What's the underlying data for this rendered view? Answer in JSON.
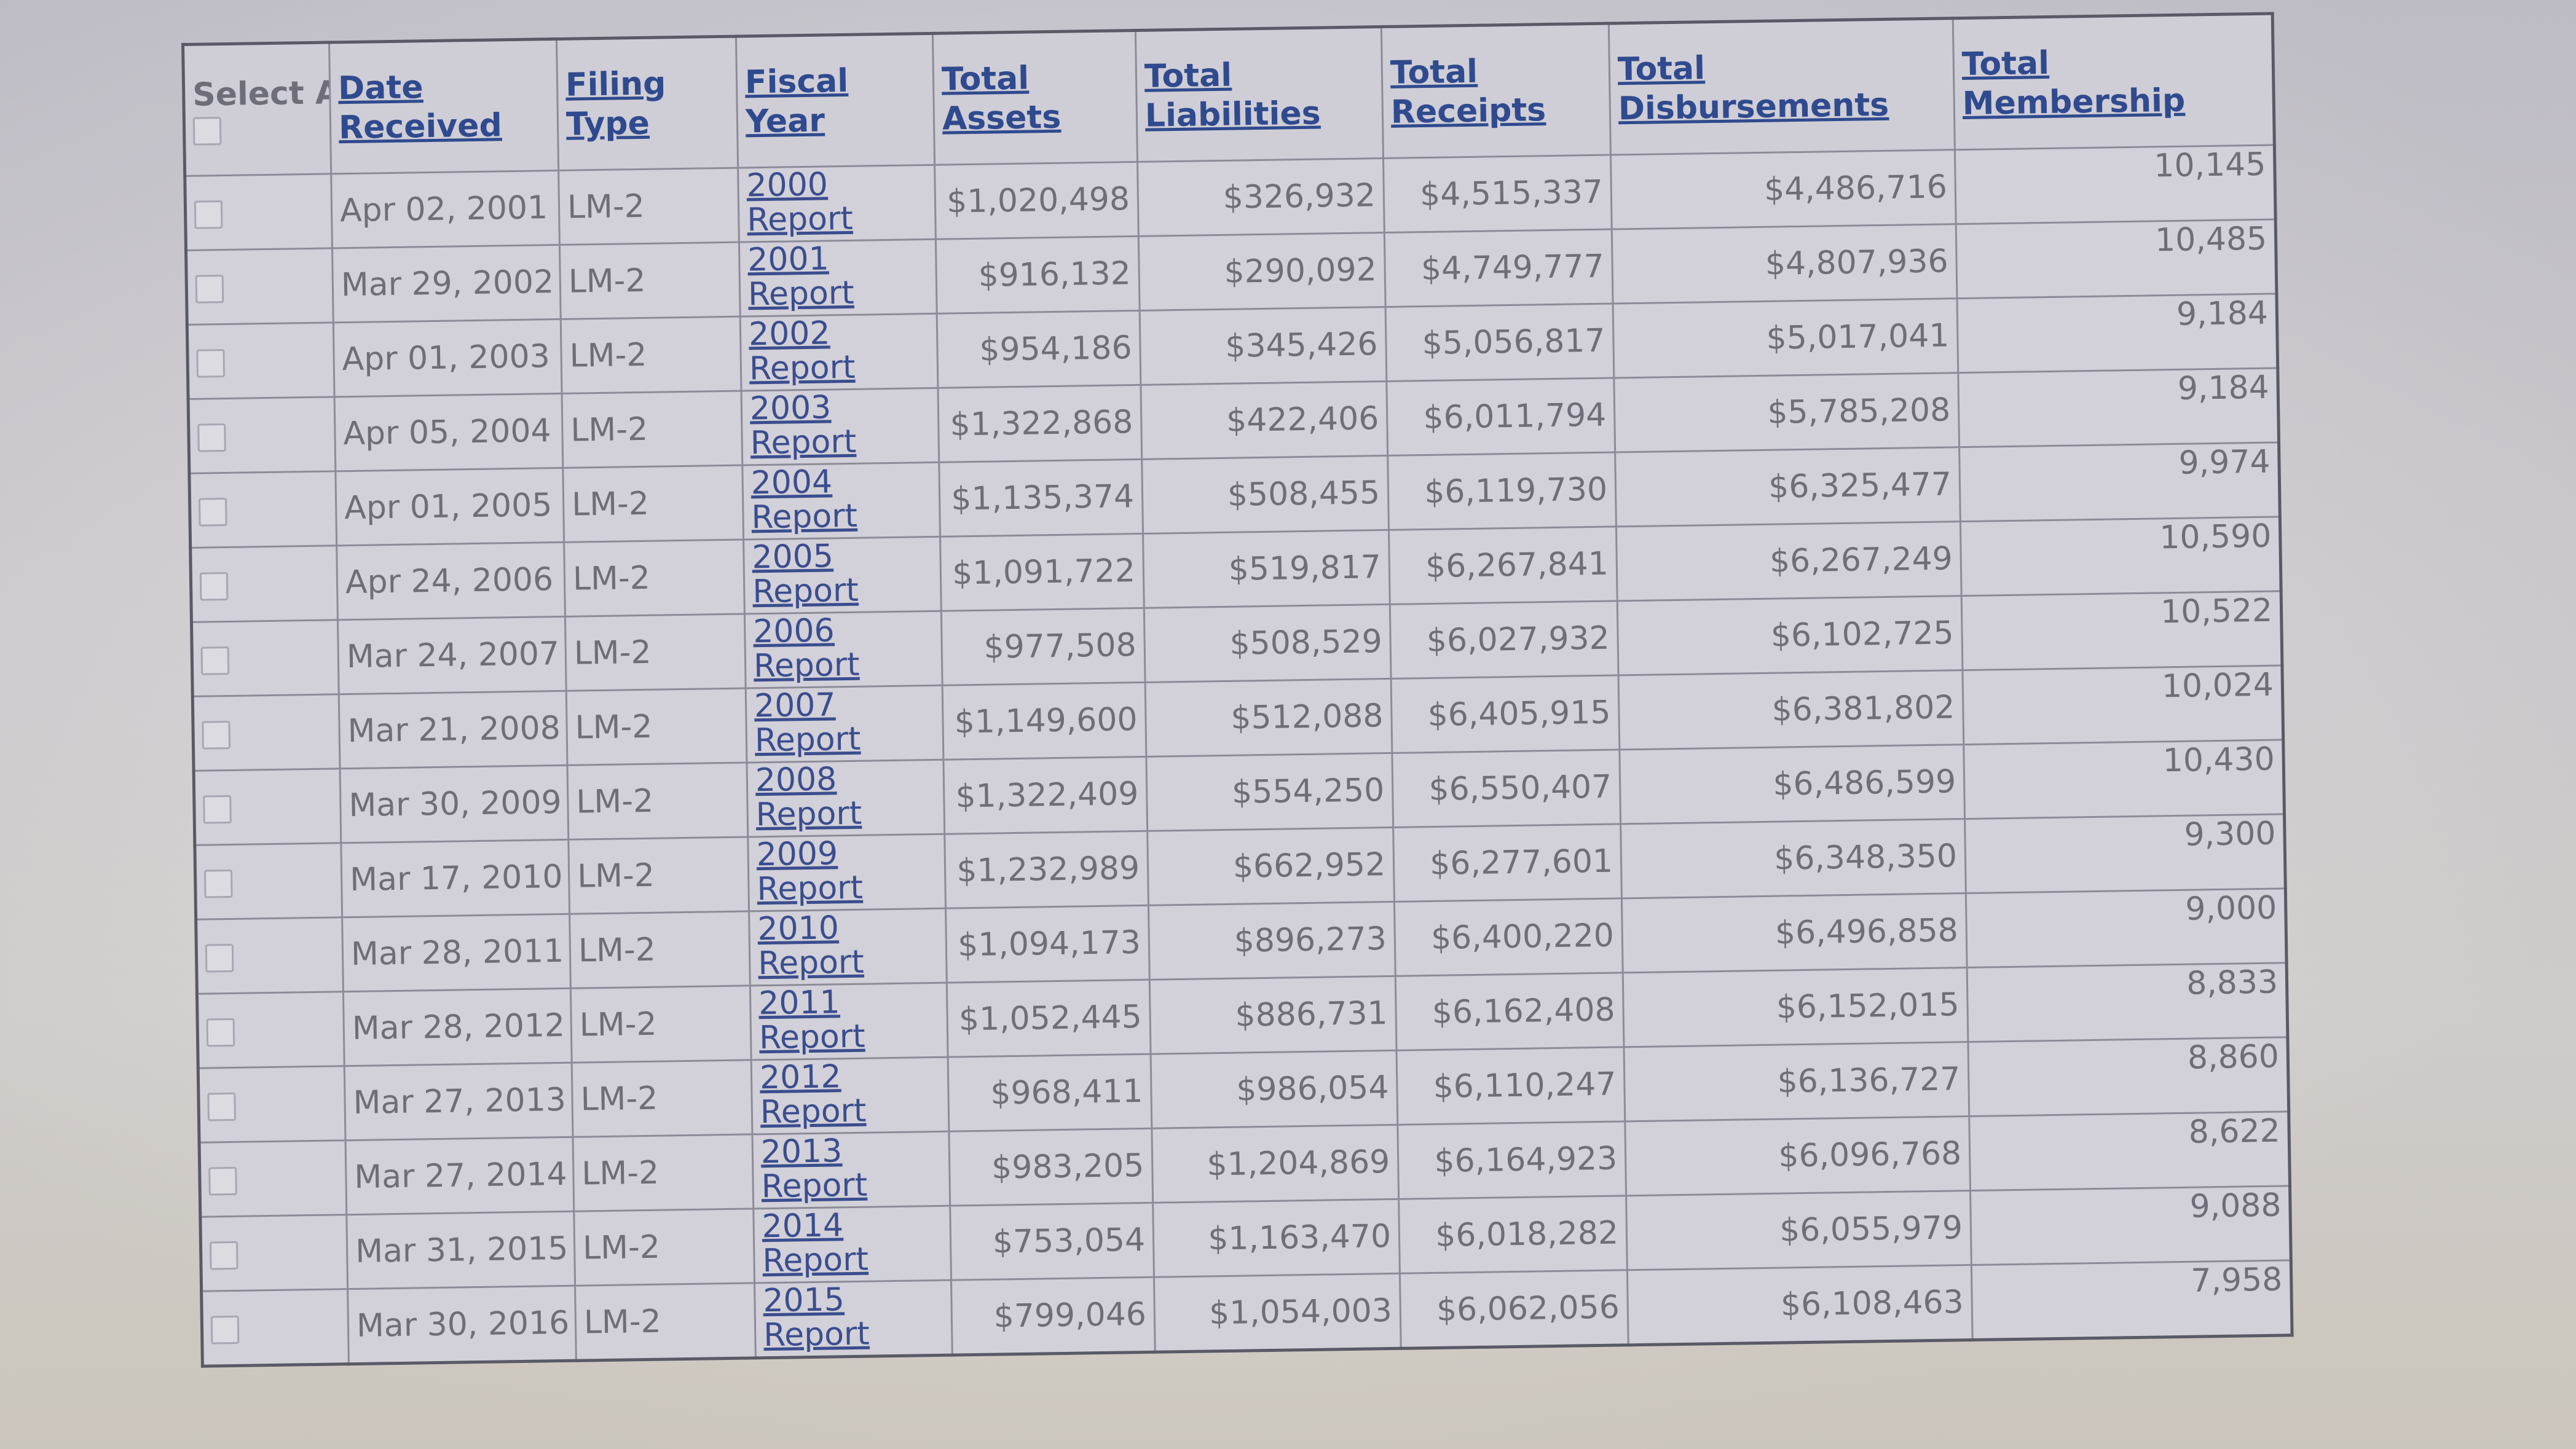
{
  "header": {
    "select_all": "Select All",
    "date_received": "Date Received",
    "filing_type": "Filing Type",
    "fiscal_year": "Fiscal Year",
    "total_assets": "Total Assets",
    "total_liabilities": "Total Liabilities",
    "total_receipts": "Total Receipts",
    "total_disbursements": "Total Disbursements",
    "total_membership": "Total Membership"
  },
  "rows": [
    {
      "date": "Apr 02, 2001",
      "type": "LM-2",
      "year": "2000",
      "report": "Report",
      "assets": "$1,020,498",
      "liabilities": "$326,932",
      "receipts": "$4,515,337",
      "disbursements": "$4,486,716",
      "membership": "10,145"
    },
    {
      "date": "Mar 29, 2002",
      "type": "LM-2",
      "year": "2001",
      "report": "Report",
      "assets": "$916,132",
      "liabilities": "$290,092",
      "receipts": "$4,749,777",
      "disbursements": "$4,807,936",
      "membership": "10,485"
    },
    {
      "date": "Apr 01, 2003",
      "type": "LM-2",
      "year": "2002",
      "report": "Report",
      "assets": "$954,186",
      "liabilities": "$345,426",
      "receipts": "$5,056,817",
      "disbursements": "$5,017,041",
      "membership": "9,184"
    },
    {
      "date": "Apr 05, 2004",
      "type": "LM-2",
      "year": "2003",
      "report": "Report",
      "assets": "$1,322,868",
      "liabilities": "$422,406",
      "receipts": "$6,011,794",
      "disbursements": "$5,785,208",
      "membership": "9,184"
    },
    {
      "date": "Apr 01, 2005",
      "type": "LM-2",
      "year": "2004",
      "report": "Report",
      "assets": "$1,135,374",
      "liabilities": "$508,455",
      "receipts": "$6,119,730",
      "disbursements": "$6,325,477",
      "membership": "9,974"
    },
    {
      "date": "Apr 24, 2006",
      "type": "LM-2",
      "year": "2005",
      "report": "Report",
      "assets": "$1,091,722",
      "liabilities": "$519,817",
      "receipts": "$6,267,841",
      "disbursements": "$6,267,249",
      "membership": "10,590"
    },
    {
      "date": "Mar 24, 2007",
      "type": "LM-2",
      "year": "2006",
      "report": "Report",
      "assets": "$977,508",
      "liabilities": "$508,529",
      "receipts": "$6,027,932",
      "disbursements": "$6,102,725",
      "membership": "10,522"
    },
    {
      "date": "Mar 21, 2008",
      "type": "LM-2",
      "year": "2007",
      "report": "Report",
      "assets": "$1,149,600",
      "liabilities": "$512,088",
      "receipts": "$6,405,915",
      "disbursements": "$6,381,802",
      "membership": "10,024"
    },
    {
      "date": "Mar 30, 2009",
      "type": "LM-2",
      "year": "2008",
      "report": "Report",
      "assets": "$1,322,409",
      "liabilities": "$554,250",
      "receipts": "$6,550,407",
      "disbursements": "$6,486,599",
      "membership": "10,430"
    },
    {
      "date": "Mar 17, 2010",
      "type": "LM-2",
      "year": "2009",
      "report": "Report",
      "assets": "$1,232,989",
      "liabilities": "$662,952",
      "receipts": "$6,277,601",
      "disbursements": "$6,348,350",
      "membership": "9,300"
    },
    {
      "date": "Mar 28, 2011",
      "type": "LM-2",
      "year": "2010",
      "report": "Report",
      "assets": "$1,094,173",
      "liabilities": "$896,273",
      "receipts": "$6,400,220",
      "disbursements": "$6,496,858",
      "membership": "9,000"
    },
    {
      "date": "Mar 28, 2012",
      "type": "LM-2",
      "year": "2011",
      "report": "Report",
      "assets": "$1,052,445",
      "liabilities": "$886,731",
      "receipts": "$6,162,408",
      "disbursements": "$6,152,015",
      "membership": "8,833"
    },
    {
      "date": "Mar 27, 2013",
      "type": "LM-2",
      "year": "2012",
      "report": "Report",
      "assets": "$968,411",
      "liabilities": "$986,054",
      "receipts": "$6,110,247",
      "disbursements": "$6,136,727",
      "membership": "8,860"
    },
    {
      "date": "Mar 27, 2014",
      "type": "LM-2",
      "year": "2013",
      "report": "Report",
      "assets": "$983,205",
      "liabilities": "$1,204,869",
      "receipts": "$6,164,923",
      "disbursements": "$6,096,768",
      "membership": "8,622"
    },
    {
      "date": "Mar 31, 2015",
      "type": "LM-2",
      "year": "2014",
      "report": "Report",
      "assets": "$753,054",
      "liabilities": "$1,163,470",
      "receipts": "$6,018,282",
      "disbursements": "$6,055,979",
      "membership": "9,088"
    },
    {
      "date": "Mar 30, 2016",
      "type": "LM-2",
      "year": "2015",
      "report": "Report",
      "assets": "$799,046",
      "liabilities": "$1,054,003",
      "receipts": "$6,062,056",
      "disbursements": "$6,108,463",
      "membership": "7,958"
    }
  ]
}
